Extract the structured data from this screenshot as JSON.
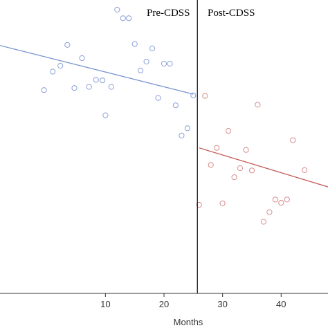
{
  "chart_data": {
    "type": "scatter",
    "xlabel": "Months",
    "ylabel": "",
    "title": "",
    "xlim": [
      -8,
      48
    ],
    "ylim": [
      0,
      100
    ],
    "xticks": [
      10,
      20,
      30,
      40
    ],
    "grid": false,
    "divider_x": 25.7,
    "phase_labels": {
      "pre": "Pre-CDSS",
      "post": "Post-CDSS"
    },
    "colors": {
      "pre": "#8a9fd8",
      "post": "#d98b8b",
      "pre_line": "#7b93d2",
      "post_line": "#c65a5a",
      "axis": "#333333",
      "divider": "#000000"
    },
    "series": [
      {
        "points": [
          [
            -0.5,
            69.3
          ],
          [
            1,
            75.6
          ],
          [
            2.3,
            77.6
          ],
          [
            3.5,
            84.7
          ],
          [
            4.7,
            70.0
          ],
          [
            6,
            80.2
          ],
          [
            7.2,
            70.4
          ],
          [
            8.4,
            72.8
          ],
          [
            9.5,
            72.6
          ],
          [
            10,
            60.7
          ],
          [
            11,
            70.4
          ],
          [
            12,
            96.7
          ],
          [
            13,
            93.8
          ],
          [
            14,
            93.8
          ],
          [
            15,
            85.0
          ],
          [
            16,
            76.0
          ],
          [
            17,
            79.0
          ],
          [
            18,
            83.5
          ],
          [
            19,
            66.6
          ],
          [
            20,
            78.3
          ],
          [
            21,
            78.3
          ],
          [
            22,
            64.1
          ],
          [
            23,
            53.8
          ],
          [
            24,
            56.3
          ],
          [
            25,
            67.5
          ]
        ],
        "trend": [
          [
            -8,
            84.5
          ],
          [
            25,
            67.9
          ]
        ]
      },
      {
        "points": [
          [
            26,
            30.2
          ],
          [
            27,
            67.3
          ],
          [
            28,
            43.8
          ],
          [
            29,
            49.6
          ],
          [
            30,
            30.7
          ],
          [
            31,
            55.4
          ],
          [
            32,
            39.6
          ],
          [
            33,
            42.7
          ],
          [
            34,
            48.9
          ],
          [
            35,
            41.9
          ],
          [
            36,
            64.3
          ],
          [
            37,
            24.4
          ],
          [
            38,
            27.7
          ],
          [
            39,
            32.0
          ],
          [
            40,
            30.9
          ],
          [
            41,
            32.0
          ],
          [
            42,
            52.2
          ],
          [
            44,
            42.0
          ]
        ],
        "trend": [
          [
            26,
            49.6
          ],
          [
            48,
            36.3
          ]
        ]
      }
    ]
  }
}
